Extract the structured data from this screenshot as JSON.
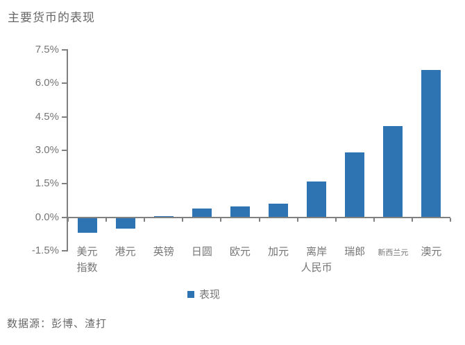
{
  "source_note": "数据源：彭博、渣打",
  "colors": {
    "bar": "#2F74B2",
    "axis": "#808080",
    "text": "#757575",
    "title": "#666666"
  },
  "chart_data": {
    "type": "bar",
    "title": "主要货币的表现",
    "series_name": "表现",
    "categories": [
      "美元\n指数",
      "港元",
      "英镑",
      "日圆",
      "欧元",
      "加元",
      "离岸\n人民币",
      "瑞郎",
      "新西兰元",
      "澳元"
    ],
    "values": [
      -0.7,
      -0.5,
      0.05,
      0.4,
      0.5,
      0.6,
      1.6,
      2.9,
      4.1,
      6.6
    ],
    "ytick_labels": [
      "7.5%",
      "6.0%",
      "4.5%",
      "3.0%",
      "1.5%",
      "0.0%",
      "-1.5%"
    ],
    "ytick_values": [
      7.5,
      6.0,
      4.5,
      3.0,
      1.5,
      0.0,
      -1.5
    ],
    "ylim": [
      -1.5,
      7.5
    ],
    "xlabel": "",
    "ylabel": "",
    "grid": false,
    "legend_position": "bottom",
    "small_label_index": 8,
    "bar_color": "#2F74B2"
  }
}
